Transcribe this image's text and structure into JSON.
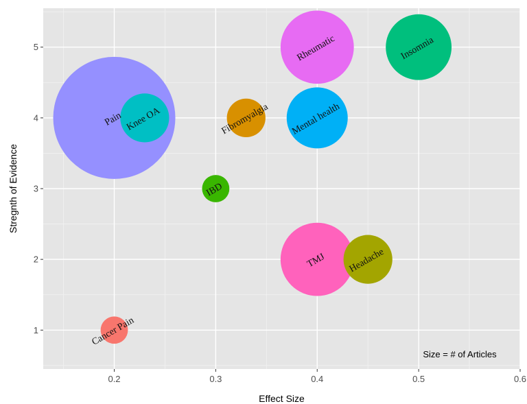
{
  "chart_data": {
    "type": "scatter",
    "xlabel": "Effect Size",
    "ylabel": "Stregnth of Evidence",
    "xlim": [
      0.13,
      0.6
    ],
    "ylim": [
      0.45,
      5.55
    ],
    "x_ticks": [
      "0.2",
      "0.3",
      "0.4",
      "0.5",
      "0.6"
    ],
    "x_tick_values": [
      0.2,
      0.3,
      0.4,
      0.5,
      0.6
    ],
    "y_ticks": [
      "1",
      "2",
      "3",
      "4",
      "5"
    ],
    "y_tick_values": [
      1,
      2,
      3,
      4,
      5
    ],
    "grid": true,
    "background": "#e5e5e5",
    "size_note": "Size = # of Articles",
    "points": [
      {
        "label": "Pain",
        "x": 0.2,
        "y": 4,
        "size": 100,
        "color": "#9590ff"
      },
      {
        "label": "Knee OA",
        "x": 0.23,
        "y": 4,
        "size": 16,
        "color": "#00bfc4"
      },
      {
        "label": "Fibromyalgia",
        "x": 0.33,
        "y": 4,
        "size": 10,
        "color": "#d89000"
      },
      {
        "label": "Mental health",
        "x": 0.4,
        "y": 4,
        "size": 25,
        "color": "#00b0f6"
      },
      {
        "label": "Rheumatic",
        "x": 0.4,
        "y": 5,
        "size": 36,
        "color": "#e76bf3"
      },
      {
        "label": "Insomnia",
        "x": 0.5,
        "y": 5,
        "size": 29,
        "color": "#00bf7d"
      },
      {
        "label": "IBD",
        "x": 0.3,
        "y": 3,
        "size": 5,
        "color": "#39b600"
      },
      {
        "label": "TMJ",
        "x": 0.4,
        "y": 2,
        "size": 36,
        "color": "#ff62bc"
      },
      {
        "label": "Headache",
        "x": 0.45,
        "y": 2,
        "size": 16,
        "color": "#a3a500"
      },
      {
        "label": "Cancer Pain",
        "x": 0.2,
        "y": 1,
        "size": 5,
        "color": "#f8766d"
      }
    ]
  }
}
